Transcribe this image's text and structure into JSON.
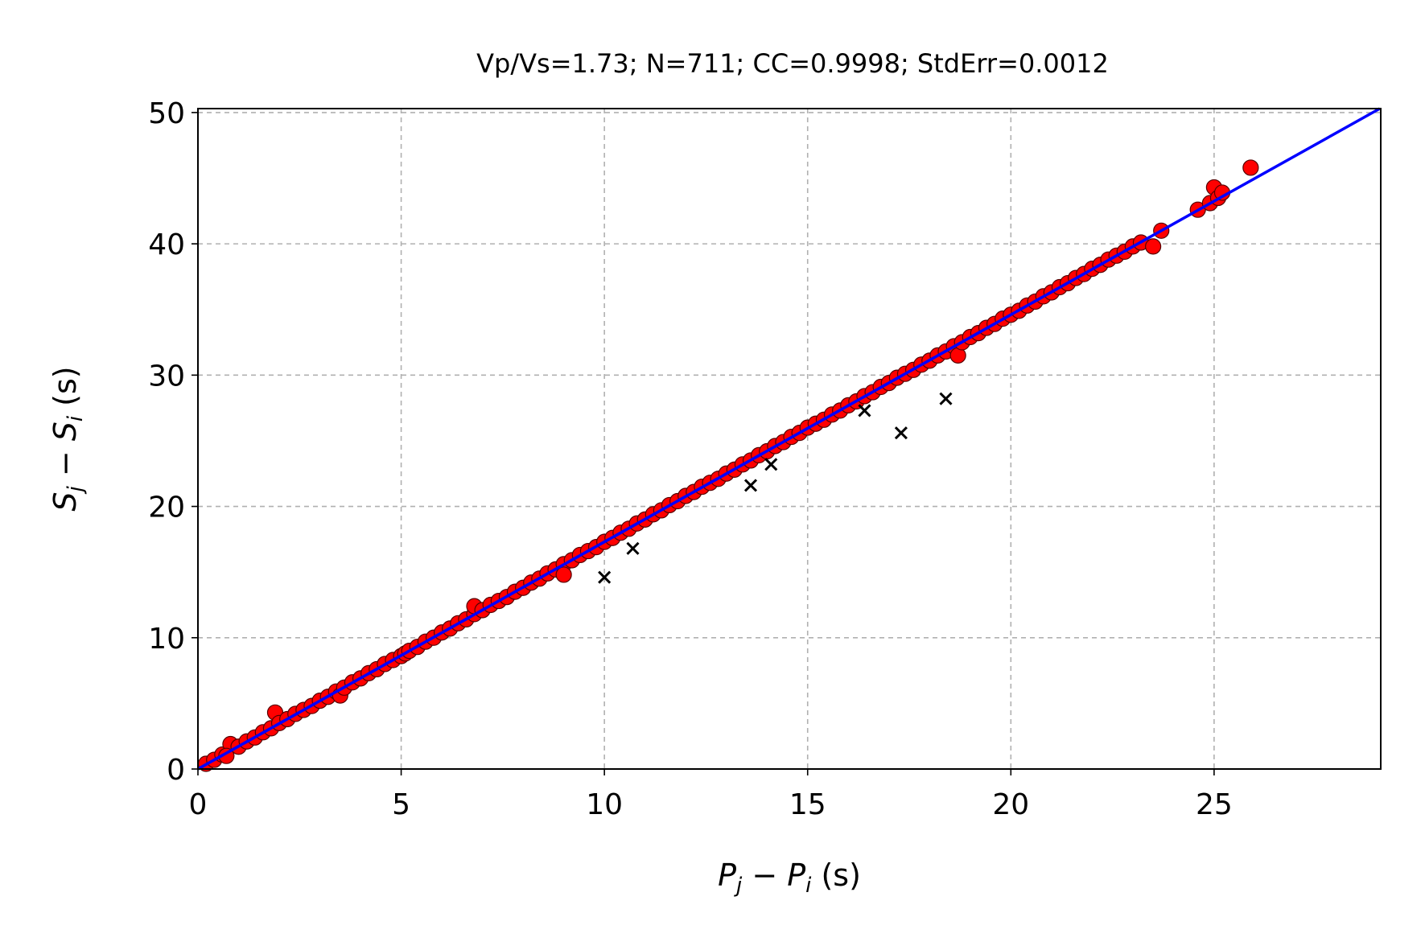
{
  "chart_data": {
    "type": "scatter",
    "title": "Vp/Vs=1.73; N=711; CC=0.9998; StdErr=0.0012",
    "xlabel": {
      "base": "P",
      "sub_j": "j",
      "minus": " − ",
      "base2": "P",
      "sub_i": "i",
      "unit": " (s)"
    },
    "ylabel": {
      "base": "S",
      "sub_j": "j",
      "minus": " − ",
      "base2": "S",
      "sub_i": "i",
      "unit": " (s)"
    },
    "xlim": [
      0,
      29.1
    ],
    "ylim": [
      0,
      50.3
    ],
    "xticks": [
      0,
      5,
      10,
      15,
      20,
      25
    ],
    "yticks": [
      0,
      10,
      20,
      30,
      40,
      50
    ],
    "xtick_labels": [
      "0",
      "5",
      "10",
      "15",
      "20",
      "25"
    ],
    "ytick_labels": [
      "0",
      "10",
      "20",
      "30",
      "40",
      "50"
    ],
    "grid": true,
    "fit_line": {
      "slope": 1.73,
      "intercept": 0.0,
      "color": "#0000ff",
      "style": "solid"
    },
    "fit_line_dashed": {
      "slope": 1.73,
      "intercept": 0.0,
      "color": "#0000ff",
      "style": "dashed",
      "x_range": [
        0,
        23.5
      ]
    },
    "series": [
      {
        "marker": "circle",
        "color": "#ff0000",
        "edge_color": "#550000",
        "x": [
          0.2,
          0.4,
          0.6,
          0.8,
          0.7,
          1.0,
          1.2,
          1.4,
          1.6,
          1.8,
          1.9,
          2.0,
          2.2,
          2.4,
          2.6,
          2.8,
          3.0,
          3.2,
          3.4,
          3.5,
          3.6,
          3.8,
          4.0,
          4.2,
          4.4,
          4.6,
          4.8,
          5.0,
          5.1,
          5.2,
          5.4,
          5.6,
          5.8,
          6.0,
          6.2,
          6.4,
          6.6,
          6.8,
          6.8,
          7.0,
          7.2,
          7.4,
          7.6,
          7.8,
          8.0,
          8.2,
          8.4,
          8.6,
          8.8,
          9.0,
          9.0,
          9.2,
          9.4,
          9.6,
          9.8,
          10.0,
          10.2,
          10.4,
          10.6,
          10.8,
          11.0,
          11.2,
          11.4,
          11.6,
          11.8,
          12.0,
          12.2,
          12.4,
          12.6,
          12.8,
          13.0,
          13.2,
          13.4,
          13.6,
          13.8,
          14.0,
          14.2,
          14.4,
          14.6,
          14.8,
          15.0,
          15.2,
          15.4,
          15.6,
          15.8,
          16.0,
          16.2,
          16.4,
          16.6,
          16.8,
          17.0,
          17.2,
          17.4,
          17.6,
          17.8,
          18.0,
          18.2,
          18.4,
          18.6,
          18.7,
          18.8,
          19.0,
          19.2,
          19.4,
          19.6,
          19.8,
          20.0,
          20.2,
          20.4,
          20.6,
          20.8,
          21.0,
          21.2,
          21.4,
          21.6,
          21.8,
          22.0,
          22.2,
          22.4,
          22.6,
          22.8,
          23.0,
          23.2,
          23.5,
          23.7,
          24.6,
          24.9,
          25.0,
          25.1,
          25.2,
          25.9
        ],
        "y": [
          0.4,
          0.7,
          1.1,
          1.9,
          1.0,
          1.7,
          2.1,
          2.4,
          2.8,
          3.1,
          4.3,
          3.5,
          3.8,
          4.2,
          4.5,
          4.8,
          5.2,
          5.5,
          5.9,
          5.6,
          6.2,
          6.6,
          6.9,
          7.3,
          7.6,
          8.0,
          8.3,
          8.6,
          8.8,
          9.0,
          9.3,
          9.7,
          10.0,
          10.4,
          10.7,
          11.1,
          11.4,
          11.8,
          12.4,
          12.1,
          12.5,
          12.8,
          13.1,
          13.5,
          13.8,
          14.2,
          14.5,
          14.9,
          15.2,
          15.6,
          14.8,
          15.9,
          16.3,
          16.6,
          16.9,
          17.3,
          17.6,
          18.0,
          18.3,
          18.7,
          19.0,
          19.4,
          19.7,
          20.1,
          20.4,
          20.8,
          21.1,
          21.5,
          21.8,
          22.1,
          22.5,
          22.8,
          23.2,
          23.5,
          23.9,
          24.2,
          24.6,
          24.9,
          25.3,
          25.6,
          26.0,
          26.3,
          26.6,
          27.0,
          27.3,
          27.7,
          28.0,
          28.4,
          28.7,
          29.1,
          29.4,
          29.8,
          30.1,
          30.4,
          30.8,
          31.1,
          31.5,
          31.8,
          32.2,
          31.5,
          32.5,
          32.9,
          33.2,
          33.6,
          33.9,
          34.3,
          34.6,
          34.9,
          35.3,
          35.6,
          36.0,
          36.3,
          36.7,
          37.0,
          37.4,
          37.7,
          38.1,
          38.4,
          38.8,
          39.1,
          39.4,
          39.8,
          40.1,
          39.8,
          41.0,
          42.6,
          43.1,
          44.3,
          43.5,
          43.9,
          45.8
        ]
      },
      {
        "marker": "x",
        "color": "#000000",
        "x": [
          10.0,
          10.7,
          13.6,
          14.1,
          16.4,
          17.3,
          18.4
        ],
        "y": [
          14.6,
          16.8,
          21.6,
          23.2,
          27.3,
          25.6,
          28.2
        ]
      }
    ]
  }
}
